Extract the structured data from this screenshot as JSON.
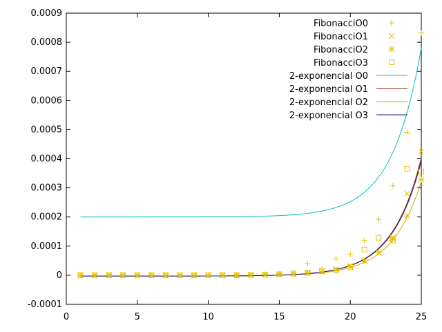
{
  "chart_data": {
    "type": "scatter",
    "title": "",
    "xlabel": "",
    "ylabel": "",
    "xlim": [
      0,
      25
    ],
    "ylim": [
      -0.0001,
      0.0009
    ],
    "x_ticks": [
      "0",
      "5",
      "10",
      "15",
      "20",
      "25"
    ],
    "y_ticks": [
      "-0.0001",
      "0",
      "0.0001",
      "0.0002",
      "0.0003",
      "0.0004",
      "0.0005",
      "0.0006",
      "0.0007",
      "0.0008",
      "0.0009"
    ],
    "grid": false,
    "legend_position": "top-right",
    "x": [
      1,
      2,
      3,
      4,
      5,
      6,
      7,
      8,
      9,
      10,
      11,
      12,
      13,
      14,
      15,
      16,
      17,
      18,
      19,
      20,
      21,
      22,
      23,
      24,
      25
    ],
    "series": [
      {
        "name": "FibonacciO0",
        "kind": "points",
        "marker": "plus",
        "color": "#e6c200",
        "values": [
          0,
          0,
          0,
          0,
          0,
          0,
          0,
          0,
          0,
          0,
          0,
          1e-06,
          2e-06,
          3e-06,
          5e-06,
          9e-06,
          4e-05,
          2.2e-05,
          5.7e-05,
          7.2e-05,
          0.000119,
          0.000192,
          0.000307,
          0.00049,
          0.000832
        ]
      },
      {
        "name": "FibonacciO1",
        "kind": "points",
        "marker": "cross",
        "color": "#e6c200",
        "values": [
          0,
          0,
          0,
          0,
          0,
          0,
          0,
          0,
          0,
          0,
          0,
          0,
          1e-06,
          2e-06,
          3e-06,
          5e-06,
          8e-06,
          1.3e-05,
          2.1e-05,
          3.1e-05,
          5e-05,
          7.8e-05,
          0.000129,
          0.00028,
          0.000425
        ]
      },
      {
        "name": "FibonacciO2",
        "kind": "points",
        "marker": "star",
        "color": "#e6c200",
        "values": [
          0,
          0,
          0,
          0,
          0,
          0,
          0,
          0,
          0,
          0,
          0,
          0,
          1e-06,
          2e-06,
          3e-06,
          5e-06,
          8e-06,
          1.3e-05,
          1.9e-05,
          3e-05,
          4.8e-05,
          7.8e-05,
          0.000125,
          0.000203,
          0.000328
        ]
      },
      {
        "name": "FibonacciO3",
        "kind": "points",
        "marker": "square",
        "color": "#e6c200",
        "values": [
          0,
          0,
          0,
          0,
          0,
          0,
          0,
          0,
          0,
          0,
          0,
          0,
          1e-06,
          2e-06,
          3e-06,
          6e-06,
          9e-06,
          1.4e-05,
          1.6e-05,
          2.7e-05,
          8.8e-05,
          0.000129,
          0.00012,
          0.000365,
          0.000355
        ]
      },
      {
        "name": "2-exponencial O0",
        "kind": "line",
        "color": "#00c0c0",
        "model": {
          "offset": 0.0002,
          "a": 0.00058,
          "x0": 25,
          "b": 0.48
        }
      },
      {
        "name": "2-exponencial O1",
        "kind": "line",
        "color": "#8b1a00",
        "model": {
          "offset": -3e-06,
          "a": 0.000405,
          "x0": 25,
          "b": 0.48
        }
      },
      {
        "name": "2-exponencial O2",
        "kind": "line",
        "color": "#d4a800",
        "model": {
          "offset": -3e-06,
          "a": 0.000325,
          "x0": 25,
          "b": 0.48
        }
      },
      {
        "name": "2-exponencial O3",
        "kind": "line",
        "color": "#1e1e8c",
        "model": {
          "offset": -3e-06,
          "a": 0.000395,
          "x0": 25,
          "b": 0.48
        }
      }
    ]
  }
}
